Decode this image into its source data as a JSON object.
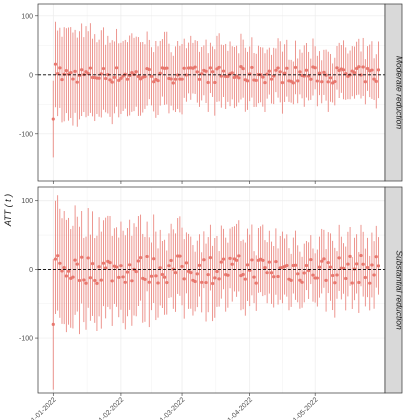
{
  "chart_data": {
    "type": "scatter",
    "ylabel": "ATT ( t )",
    "x_ticks": [
      "01-01-2022",
      "01-02-2022",
      "01-03-2022",
      "01-04-2022",
      "01-05-2022"
    ],
    "x_range": [
      "2021-12-25",
      "2022-06-02"
    ],
    "series_color": "#e8766d",
    "reference_line": {
      "y": 0,
      "style": "dashed"
    },
    "grid": true,
    "panels": [
      {
        "label": "Moderate reduction",
        "ylim": [
          -180,
          120
        ],
        "y_ticks": [
          -100,
          0,
          100
        ],
        "start_date": "2022-01-01",
        "n_points": 150,
        "first_points": [
          {
            "date": "2022-01-01",
            "y": -75,
            "low": -140,
            "high": -10
          },
          {
            "date": "2022-01-02",
            "y": 18,
            "low": -55,
            "high": 90
          },
          {
            "date": "2022-01-03",
            "y": 2,
            "low": -70,
            "high": 75
          }
        ]
      },
      {
        "label": "Substantial reduction",
        "ylim": [
          -180,
          120
        ],
        "y_ticks": [
          -100,
          0,
          100
        ],
        "start_date": "2022-01-01",
        "n_points": 150,
        "first_points": [
          {
            "date": "2022-01-01",
            "y": -80,
            "low": -175,
            "high": 15
          },
          {
            "date": "2022-01-02",
            "y": 15,
            "low": -65,
            "high": 100
          },
          {
            "date": "2022-01-03",
            "y": 20,
            "low": -60,
            "high": 108
          }
        ]
      }
    ]
  }
}
